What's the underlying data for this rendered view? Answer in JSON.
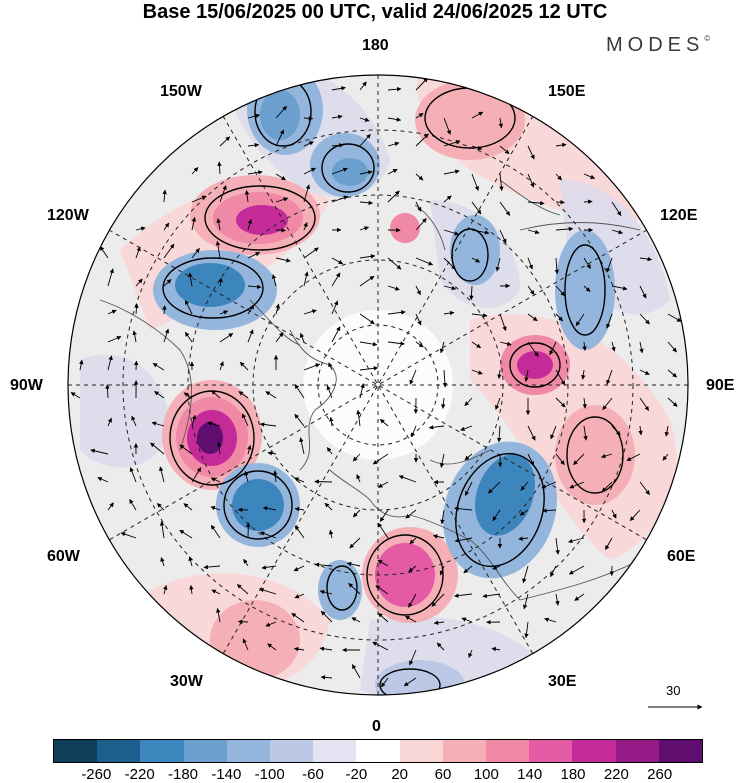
{
  "title": "Base 15/06/2025 00 UTC, valid 24/06/2025 12 UTC",
  "brand": "MODES",
  "brand_mark": "©",
  "longitude_labels": {
    "top": "180",
    "bottom": "0",
    "left": "90W",
    "right": "90E",
    "upper_left_1": "150W",
    "upper_left_2": "120W",
    "upper_right_1": "150E",
    "upper_right_2": "120E",
    "lower_left_1": "60W",
    "lower_left_2": "30W",
    "lower_right_1": "60E",
    "lower_right_2": "30E"
  },
  "reference_vector_label": "30",
  "colorbar": {
    "colors": [
      "#0d3e5a",
      "#1c5f8c",
      "#3d86bd",
      "#6a9fce",
      "#94b6dc",
      "#bcc9e6",
      "#e3e3f1",
      "#ffffff",
      "#f9d6d6",
      "#f4b0b6",
      "#ef89a6",
      "#e45aa5",
      "#c52b98",
      "#951c86",
      "#5f0d6f"
    ],
    "ticks": [
      "-260",
      "-220",
      "-180",
      "-140",
      "-100",
      "-60",
      "-20",
      "20",
      "60",
      "100",
      "140",
      "180",
      "220",
      "260"
    ]
  },
  "anomaly_colors": {
    "neg_strong": "#3d86bd",
    "neg_mid": "#94b6dc",
    "neg_weak": "#d6daec",
    "pos_weak": "#f9d6d6",
    "pos_mid": "#ef89a6",
    "pos_strong": "#c52b98",
    "pos_max": "#951c86",
    "background": "#ebebeb"
  }
}
